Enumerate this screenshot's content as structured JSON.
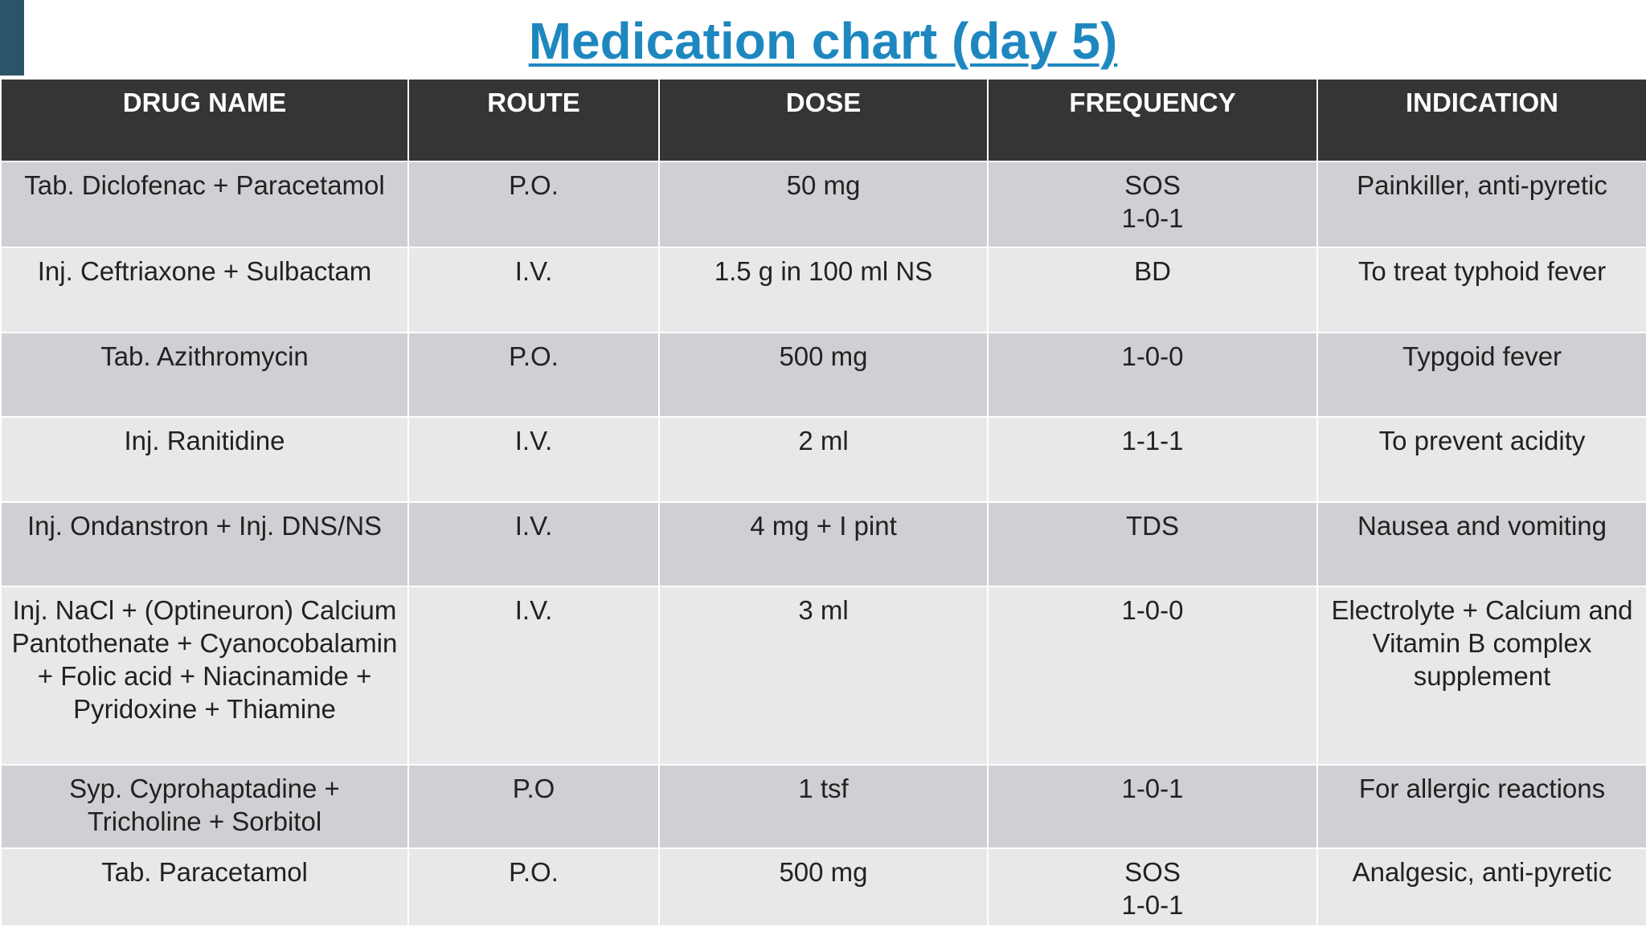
{
  "title": "Medication chart (day 5)",
  "table": {
    "header": [
      "DRUG NAME",
      "ROUTE",
      "DOSE",
      "FREQUENCY",
      "INDICATION"
    ],
    "rows": [
      [
        "Tab. Diclofenac + Paracetamol",
        "P.O.",
        "50 mg",
        "SOS\n1-0-1",
        "Painkiller, anti-pyretic"
      ],
      [
        "Inj. Ceftriaxone + Sulbactam",
        "I.V.",
        "1.5 g in 100 ml NS",
        "BD",
        "To treat typhoid fever"
      ],
      [
        "Tab. Azithromycin",
        "P.O.",
        "500 mg",
        "1-0-0",
        "Typgoid fever"
      ],
      [
        "Inj. Ranitidine",
        "I.V.",
        "2 ml",
        "1-1-1",
        "To prevent acidity"
      ],
      [
        "Inj. Ondanstron + Inj. DNS/NS",
        "I.V.",
        "4 mg + I pint",
        "TDS",
        "Nausea and vomiting"
      ],
      [
        "Inj. NaCl + (Optineuron) Calcium Pantothenate + Cyanocobalamin + Folic acid + Niacinamide + Pyridoxine + Thiamine",
        "I.V.",
        "3 ml",
        "1-0-0",
        "Electrolyte + Calcium and Vitamin B complex supplement"
      ],
      [
        "Syp. Cyprohaptadine + Tricholine + Sorbitol",
        "P.O",
        "1 tsf",
        "1-0-1",
        "For allergic reactions"
      ],
      [
        "Tab. Paracetamol",
        "P.O.",
        "500 mg",
        "SOS\n1-0-1",
        "Analgesic, anti-pyretic"
      ]
    ]
  }
}
